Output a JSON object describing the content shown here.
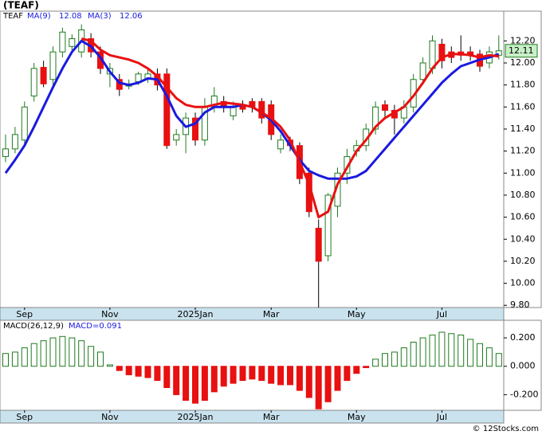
{
  "chart_data": [
    {
      "type": "candlestick",
      "title": "(TEAF)",
      "symbol": "TEAF",
      "categories": [
        null,
        null,
        "Sep",
        null,
        null,
        null,
        null,
        null,
        null,
        null,
        null,
        "Nov",
        null,
        null,
        null,
        null,
        null,
        null,
        null,
        null,
        "2025Jan",
        null,
        null,
        null,
        null,
        null,
        null,
        null,
        "Mar",
        null,
        null,
        null,
        null,
        null,
        null,
        null,
        null,
        "May",
        null,
        null,
        null,
        null,
        null,
        null,
        null,
        null,
        "Jul",
        null,
        null,
        null,
        null,
        null,
        null
      ],
      "open": [
        11.15,
        11.22,
        11.3,
        11.7,
        11.96,
        11.85,
        12.1,
        12.15,
        12.1,
        12.22,
        12.1,
        11.9,
        11.85,
        11.79,
        11.83,
        11.86,
        11.9,
        11.9,
        11.3,
        11.35,
        11.5,
        11.3,
        11.6,
        11.65,
        11.52,
        11.62,
        11.65,
        11.65,
        11.62,
        11.22,
        11.3,
        11.25,
        11.0,
        10.5,
        10.25,
        10.7,
        11.0,
        11.2,
        11.25,
        11.4,
        11.62,
        11.57,
        11.5,
        11.6,
        11.85,
        11.95,
        12.17,
        12.1,
        12.1,
        12.1,
        12.08,
        12.0,
        12.07
      ],
      "high": [
        11.35,
        11.42,
        11.65,
        12.0,
        12.02,
        12.15,
        12.32,
        12.26,
        12.35,
        12.27,
        12.15,
        12.0,
        11.9,
        11.85,
        11.92,
        11.95,
        11.95,
        11.95,
        11.4,
        11.55,
        11.55,
        11.68,
        11.78,
        11.7,
        11.65,
        11.66,
        11.68,
        11.68,
        11.66,
        11.35,
        11.33,
        11.28,
        11.05,
        10.58,
        10.82,
        11.05,
        11.22,
        11.3,
        11.45,
        11.65,
        11.66,
        11.62,
        11.66,
        11.9,
        12.05,
        12.25,
        12.22,
        12.15,
        12.25,
        12.15,
        12.12,
        12.15,
        12.25
      ],
      "low": [
        11.1,
        11.18,
        11.25,
        11.65,
        11.78,
        11.8,
        12.05,
        12.1,
        12.05,
        12.05,
        11.9,
        11.78,
        11.7,
        11.76,
        11.8,
        11.82,
        11.75,
        11.22,
        11.25,
        11.18,
        11.25,
        11.25,
        11.55,
        11.55,
        11.48,
        11.55,
        11.55,
        11.45,
        11.3,
        11.18,
        11.2,
        10.9,
        10.6,
        9.78,
        10.2,
        10.6,
        10.9,
        11.15,
        11.2,
        11.35,
        11.5,
        11.35,
        11.45,
        11.55,
        11.8,
        11.9,
        11.95,
        12.0,
        12.02,
        12.02,
        11.92,
        11.95,
        12.03
      ],
      "close": [
        11.22,
        11.35,
        11.6,
        11.95,
        11.81,
        12.1,
        12.28,
        12.22,
        12.3,
        12.1,
        11.95,
        11.95,
        11.76,
        11.81,
        11.9,
        11.9,
        11.8,
        11.25,
        11.35,
        11.5,
        11.3,
        11.6,
        11.7,
        11.6,
        11.6,
        11.58,
        11.6,
        11.5,
        11.35,
        11.3,
        11.25,
        10.95,
        10.65,
        10.2,
        10.8,
        11.0,
        11.15,
        11.25,
        11.4,
        11.6,
        11.57,
        11.5,
        11.6,
        11.85,
        12.0,
        12.2,
        12.02,
        12.05,
        12.07,
        12.07,
        11.97,
        12.1,
        12.11
      ],
      "up_color": "#1f7a1f",
      "down_color": "#e81010",
      "series": [
        {
          "name": "MA(9)",
          "legend_value": 12.08,
          "color": "#1a1ae0",
          "values": [
            11.0,
            11.12,
            11.25,
            11.42,
            11.6,
            11.78,
            11.95,
            12.1,
            12.2,
            12.15,
            12.05,
            11.92,
            11.82,
            11.8,
            11.82,
            11.86,
            11.85,
            11.7,
            11.52,
            11.42,
            11.45,
            11.55,
            11.6,
            11.6,
            11.6,
            11.62,
            11.6,
            11.55,
            11.48,
            11.38,
            11.25,
            11.12,
            11.02,
            10.98,
            10.95,
            10.95,
            10.95,
            10.97,
            11.02,
            11.12,
            11.22,
            11.32,
            11.42,
            11.52,
            11.62,
            11.72,
            11.82,
            11.9,
            11.97,
            12.0,
            12.03,
            12.05,
            12.08
          ]
        },
        {
          "name": "MA(3)",
          "legend_value": 12.06,
          "color": "#e81010",
          "values": [
            null,
            null,
            null,
            null,
            null,
            null,
            null,
            null,
            12.22,
            12.2,
            12.12,
            12.07,
            12.05,
            12.03,
            12.0,
            11.95,
            11.88,
            11.78,
            11.68,
            11.62,
            11.6,
            11.6,
            11.62,
            11.64,
            11.63,
            11.62,
            11.6,
            11.55,
            11.5,
            11.42,
            11.3,
            11.1,
            10.9,
            10.6,
            10.65,
            10.9,
            11.05,
            11.2,
            11.3,
            11.42,
            11.5,
            11.55,
            11.6,
            11.7,
            11.82,
            11.95,
            12.05,
            12.08,
            12.08,
            12.07,
            12.05,
            12.07,
            12.06
          ]
        }
      ],
      "last_price": {
        "value": 12.11,
        "label": "12.11"
      },
      "ylim": [
        9.78,
        12.47
      ],
      "yticks": [
        {
          "value": 9.8,
          "label": "9.80"
        },
        {
          "value": 10.0,
          "label": "10.00"
        },
        {
          "value": 10.2,
          "label": "10.20"
        },
        {
          "value": 10.4,
          "label": "10.40"
        },
        {
          "value": 10.6,
          "label": "10.60"
        },
        {
          "value": 10.8,
          "label": "10.80"
        },
        {
          "value": 11.0,
          "label": "11.00"
        },
        {
          "value": 11.2,
          "label": "11.20"
        },
        {
          "value": 11.4,
          "label": "11.40"
        },
        {
          "value": 11.6,
          "label": "11.60"
        },
        {
          "value": 11.8,
          "label": "11.80"
        },
        {
          "value": 12.0,
          "label": "12.00"
        },
        {
          "value": 12.2,
          "label": "12.20"
        }
      ]
    },
    {
      "type": "bar",
      "title": "MACD(26,12,9)",
      "legend_label": "MACD=0.091",
      "values": [
        0.09,
        0.1,
        0.13,
        0.16,
        0.18,
        0.2,
        0.21,
        0.2,
        0.18,
        0.14,
        0.1,
        0.01,
        -0.03,
        -0.06,
        -0.07,
        -0.08,
        -0.1,
        -0.15,
        -0.2,
        -0.24,
        -0.26,
        -0.24,
        -0.18,
        -0.14,
        -0.12,
        -0.1,
        -0.09,
        -0.1,
        -0.12,
        -0.13,
        -0.13,
        -0.17,
        -0.22,
        -0.3,
        -0.25,
        -0.17,
        -0.1,
        -0.05,
        -0.01,
        0.05,
        0.09,
        0.1,
        0.13,
        0.17,
        0.2,
        0.22,
        0.24,
        0.23,
        0.22,
        0.19,
        0.16,
        0.13,
        0.09
      ],
      "up_color": "#1f7a1f",
      "down_color": "#e81010",
      "ylim": [
        -0.31,
        0.324
      ],
      "yticks": [
        {
          "value": -0.2,
          "label": "-0.200"
        },
        {
          "value": 0,
          "label": "0.000"
        },
        {
          "value": 0.2,
          "label": "0.200"
        }
      ]
    }
  ],
  "footer": "© 12Stocks.com"
}
